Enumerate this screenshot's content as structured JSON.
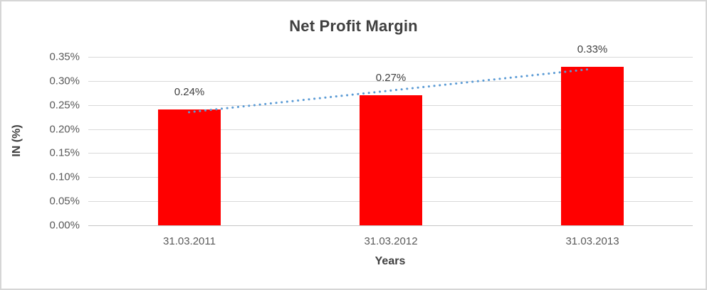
{
  "chart_data": {
    "type": "bar",
    "title": "Net Profit Margin",
    "xlabel": "Years",
    "ylabel": "IN (%)",
    "categories": [
      "31.03.2011",
      "31.03.2012",
      "31.03.2013"
    ],
    "values": [
      0.24,
      0.27,
      0.33
    ],
    "data_labels": [
      "0.24%",
      "0.27%",
      "0.33%"
    ],
    "ylim": [
      0,
      0.35
    ],
    "ytick_step": 0.05,
    "ytick_labels": [
      "0.00%",
      "0.05%",
      "0.10%",
      "0.15%",
      "0.20%",
      "0.25%",
      "0.30%",
      "0.35%"
    ],
    "grid": true,
    "legend": false,
    "trendline": {
      "kind": "linear",
      "style": "dotted"
    },
    "colors": {
      "bar": "#ff0000",
      "trendline": "#5b9bd5",
      "gridline": "#d9d9d9",
      "title_text": "#404040",
      "tick_text": "#595959",
      "frame_border": "#d6d6d6"
    }
  }
}
